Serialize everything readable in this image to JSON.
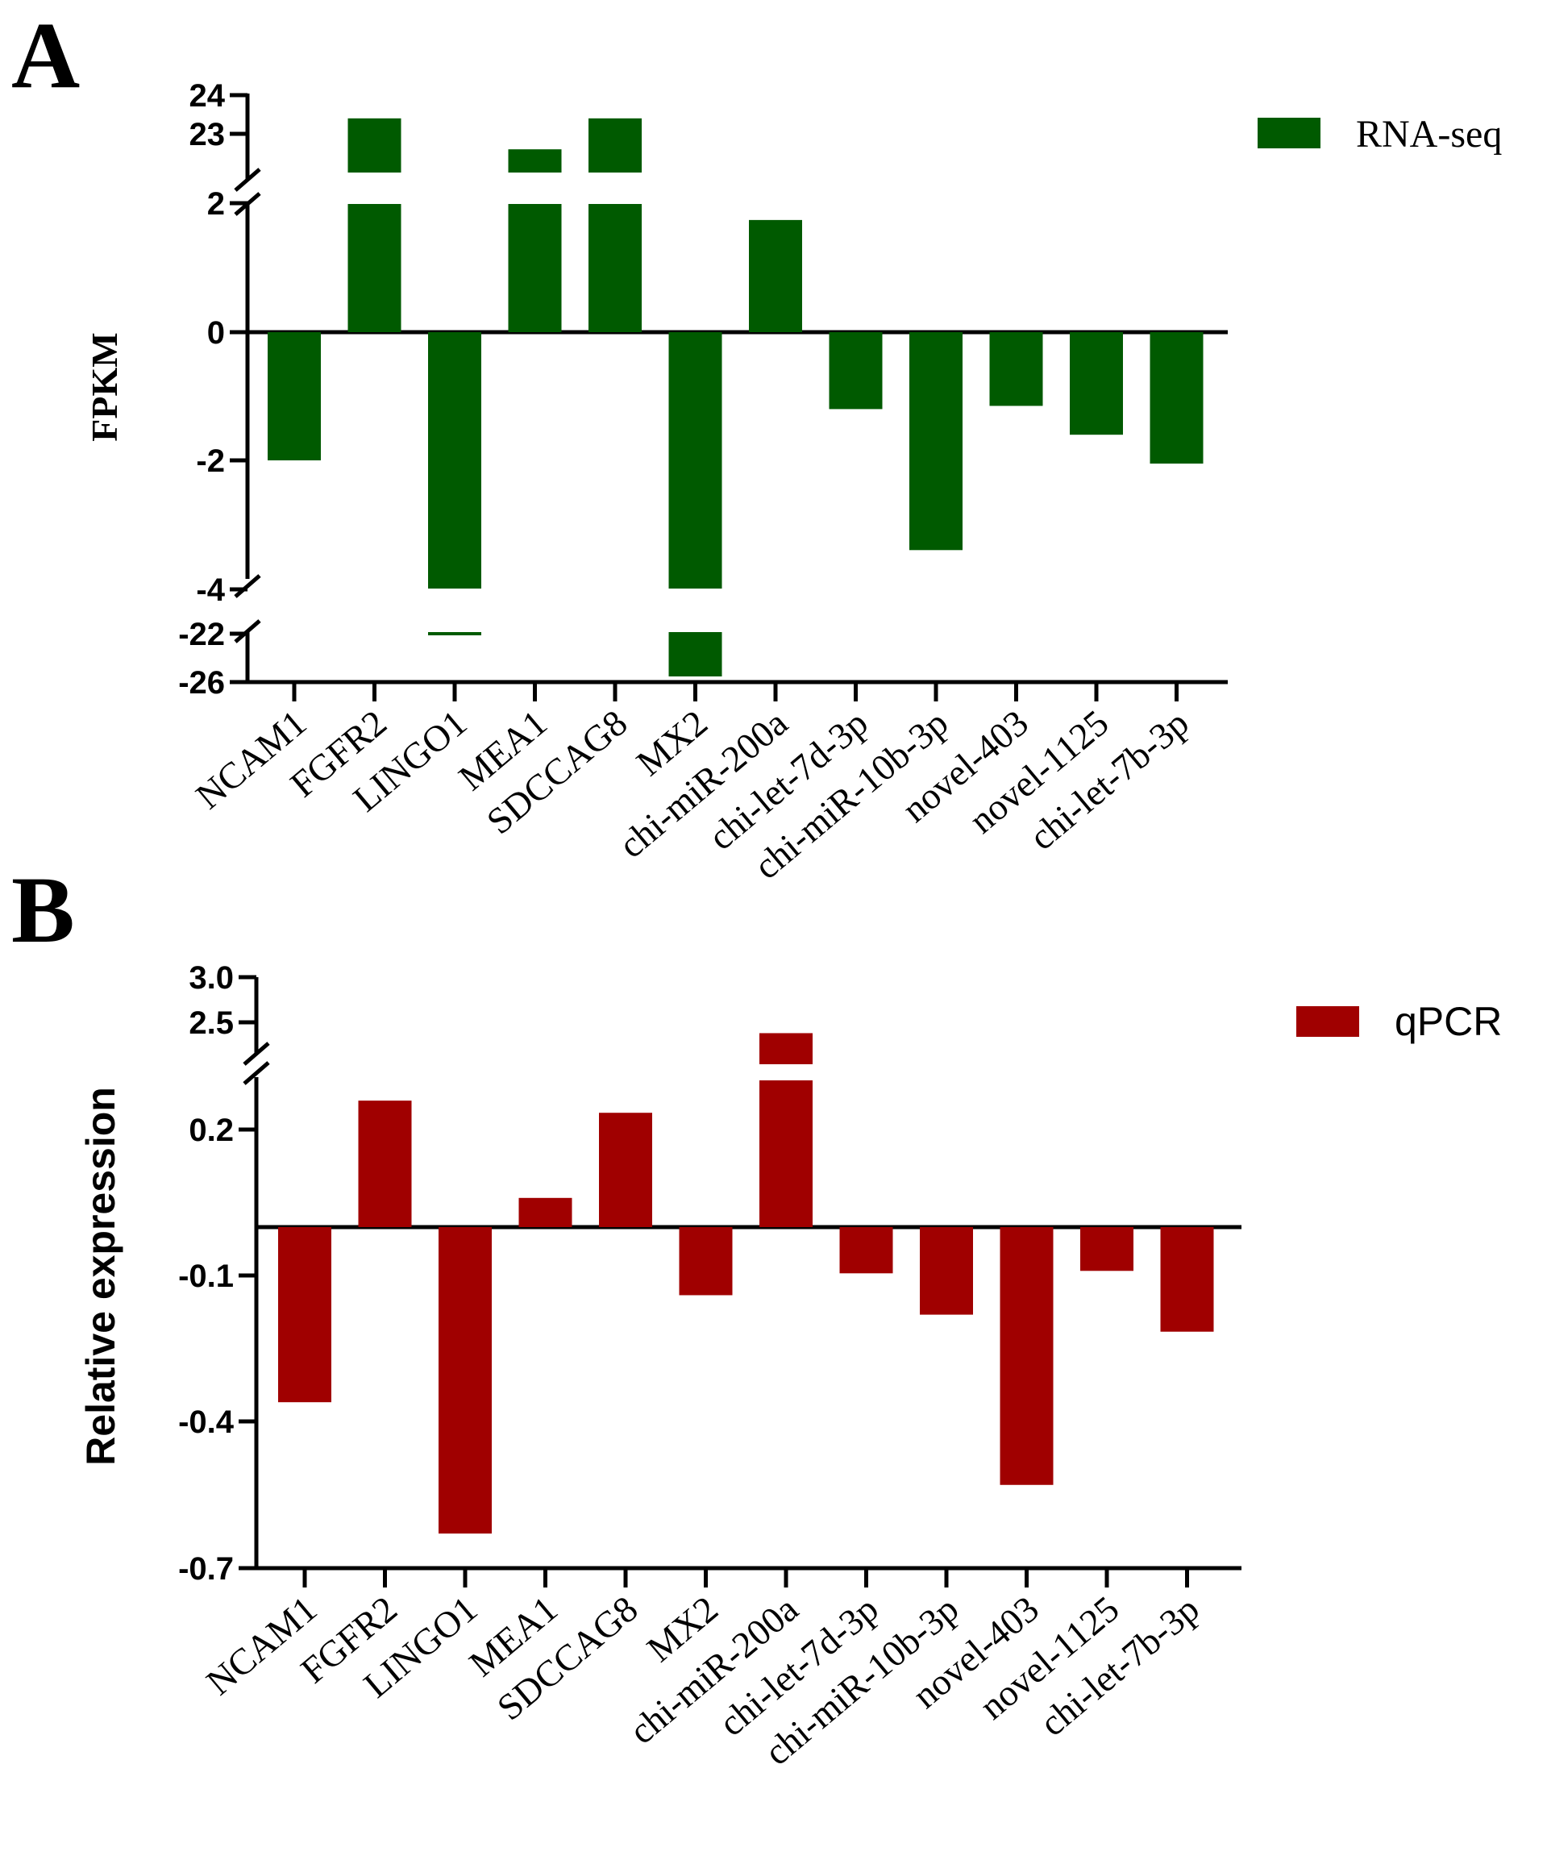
{
  "chart_data": [
    {
      "panel": "A",
      "type": "bar",
      "ylabel": "FPKM",
      "legend": "RNA-seq",
      "color": "#005a00",
      "categories": [
        "NCAM1",
        "FGFR2",
        "LINGO1",
        "MEA1",
        "SDCCAG8",
        "MX2",
        "chi-miR-200a",
        "chi-let-7d-3p",
        "chi-miR-10b-3p",
        "novel-403",
        "novel-1125",
        "chi-let-7b-3p"
      ],
      "values": [
        -2.0,
        23.4,
        -22.2,
        22.6,
        23.4,
        -25.6,
        1.75,
        -1.2,
        -3.4,
        -1.15,
        -1.6,
        -2.05
      ],
      "yticks": [
        "24",
        "23",
        "2",
        "0",
        "-2",
        "-4",
        "-22",
        "-26"
      ],
      "axis_breaks": [
        {
          "between": [
            2,
            22.4
          ]
        },
        {
          "between": [
            -21.5,
            -4
          ]
        }
      ]
    },
    {
      "panel": "B",
      "type": "bar",
      "ylabel": "Relative expression",
      "legend": "qPCR",
      "color": "#a00000",
      "categories": [
        "NCAM1",
        "FGFR2",
        "LINGO1",
        "MEA1",
        "SDCCAG8",
        "MX2",
        "chi-miR-200a",
        "chi-let-7d-3p",
        "chi-miR-10b-3p",
        "novel-403",
        "novel-1125",
        "chi-let-7b-3p"
      ],
      "values": [
        -0.36,
        0.26,
        -0.63,
        0.06,
        0.235,
        -0.14,
        2.38,
        -0.095,
        -0.18,
        -0.53,
        -0.09,
        -0.215
      ],
      "yticks": [
        "3.0",
        "2.5",
        "0.2",
        "-0.1",
        "-0.4",
        "-0.7"
      ],
      "axis_breaks": [
        {
          "between": [
            0.4,
            2.2
          ]
        }
      ]
    }
  ]
}
